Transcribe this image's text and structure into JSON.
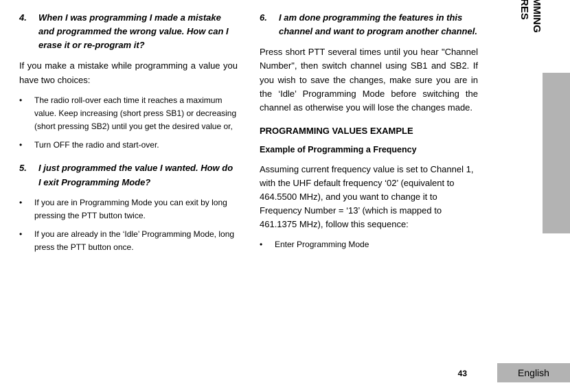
{
  "left": {
    "q4_num": "4.",
    "q4_text": "When I was programming I made a mistake and programmed the wrong value. How can I erase it or re-program it?",
    "a4": "If you make a mistake while programming a value you have two choices:",
    "a4_b1": "The radio roll-over each time it reaches a maximum value. Keep increasing (short press SB1) or decreasing (short pressing SB2) until you get the desired value or,",
    "a4_b2": "Turn OFF the radio and start-over.",
    "q5_num": "5.",
    "q5_text": "I just programmed the value I wanted. How do I exit Programming Mode?",
    "a5_b1": "If you are in Programming Mode you can exit by long pressing the PTT button twice.",
    "a5_b2": "If you are already in the ‘Idle’ Programming Mode, long press the PTT button once."
  },
  "right": {
    "q6_num": "6.",
    "q6_text": "I am done programming the features in this channel and want to program another channel.",
    "a6": "Press short PTT several times until you hear \"Channel Number\", then switch channel using SB1 and SB2. If you wish to save the changes, make sure you are in the ‘Idle’ Programming Mode before switching the channel as otherwise you will lose the changes made.",
    "sec": "PROGRAMMING VALUES EXAMPLE",
    "sub": "Example of Programming a Frequency",
    "p1": "Assuming current frequency value is set to Channel 1, with the UHF default frequency ‘02’ (equivalent to 464.5500 MHz), and you want to change it to Frequency Number = ‘13’ (which is mapped to 461.1375 MHz), follow this sequence:",
    "p1_b1": "Enter Programming Mode"
  },
  "side": {
    "line1": "PROGRAMMING",
    "line2": "FEATURES"
  },
  "footer": {
    "page": "43",
    "lang": "English"
  }
}
